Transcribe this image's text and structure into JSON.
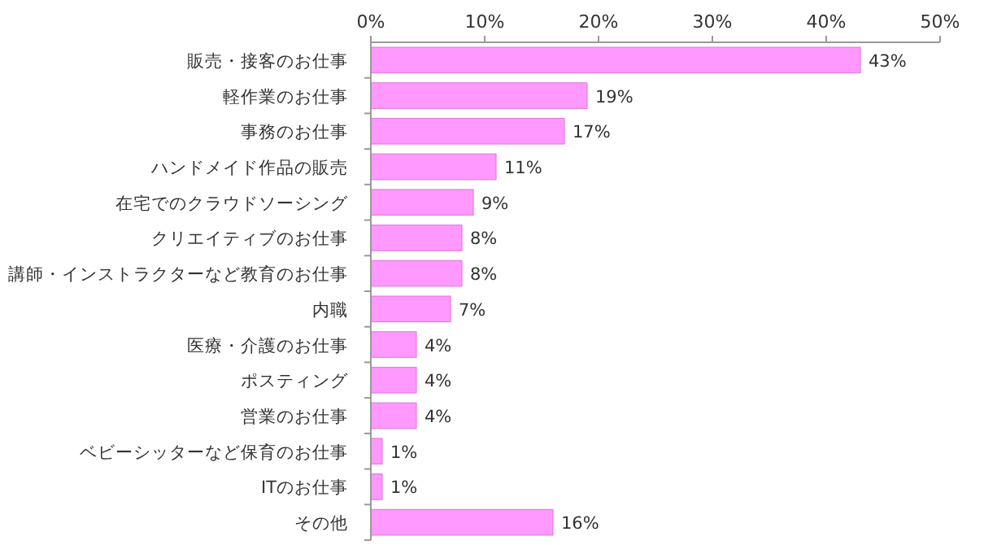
{
  "chart_data": {
    "type": "bar",
    "orientation": "horizontal",
    "categories": [
      "販売・接客のお仕事",
      "軽作業のお仕事",
      "事務のお仕事",
      "ハンドメイド作品の販売",
      "在宅でのクラウドソーシング",
      "クリエイティブのお仕事",
      "講師・インストラクターなど教育のお仕事",
      "内職",
      "医療・介護のお仕事",
      "ポスティング",
      "営業のお仕事",
      "ベビーシッターなど保育のお仕事",
      "ITのお仕事",
      "その他"
    ],
    "values": [
      43,
      19,
      17,
      11,
      9,
      8,
      8,
      7,
      4,
      4,
      4,
      1,
      1,
      16
    ],
    "value_labels": [
      "43%",
      "19%",
      "17%",
      "11%",
      "9%",
      "8%",
      "8%",
      "7%",
      "4%",
      "4%",
      "4%",
      "1%",
      "1%",
      "16%"
    ],
    "color": "#ff99ff",
    "xlim": [
      0,
      50
    ],
    "xticks": [
      {
        "value": 0,
        "label": "0%"
      },
      {
        "value": 10,
        "label": "10%"
      },
      {
        "value": 20,
        "label": "20%"
      },
      {
        "value": 30,
        "label": "30%"
      },
      {
        "value": 40,
        "label": "40%"
      },
      {
        "value": 50,
        "label": "50%"
      }
    ]
  }
}
